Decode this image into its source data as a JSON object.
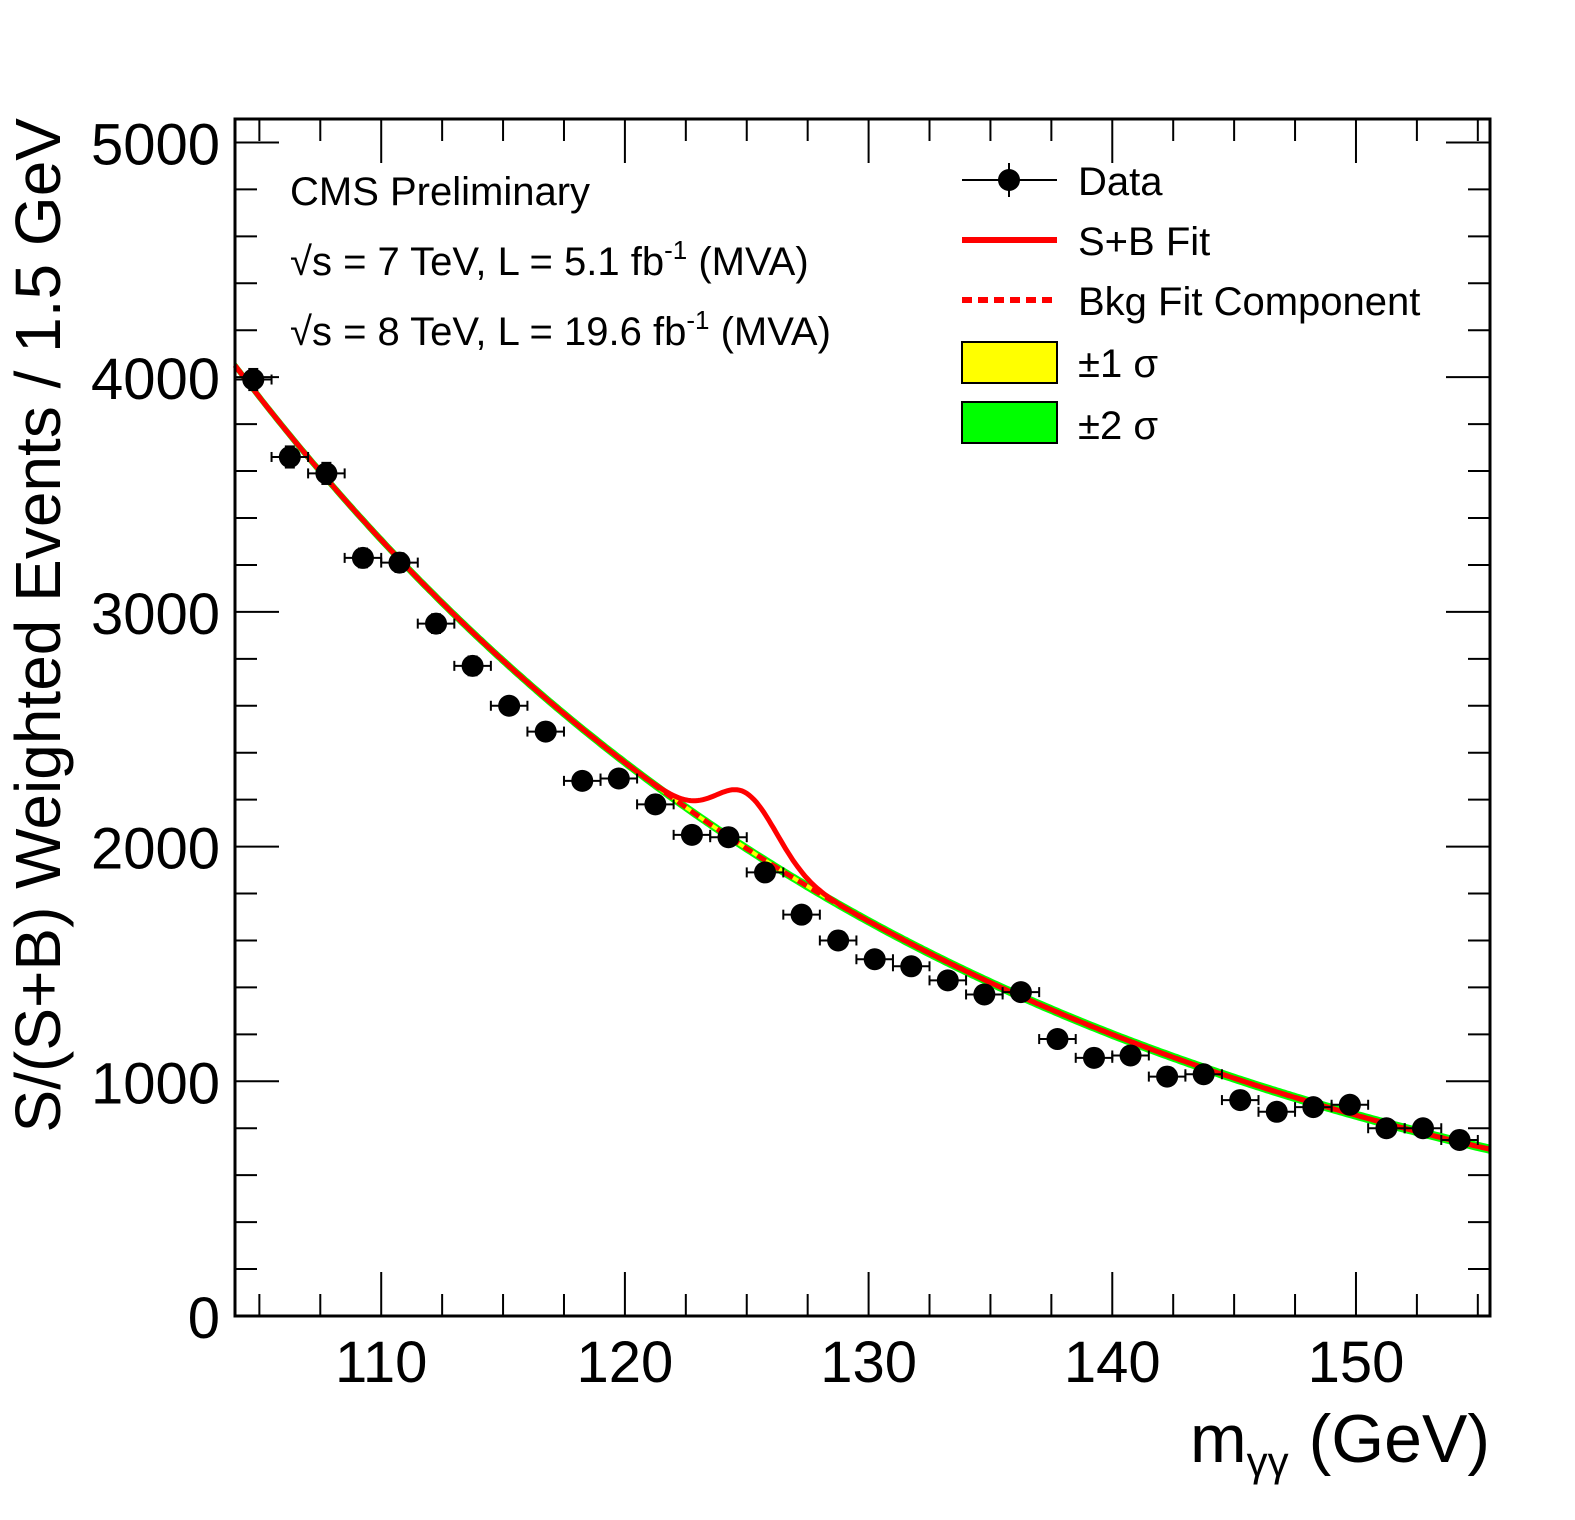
{
  "chart_data": {
    "type": "scatter",
    "title": "",
    "xlabel_main": "m",
    "xlabel_sub": "γγ",
    "xlabel_unit": "(GeV)",
    "ylabel": "S/(S+B) Weighted Events / 1.5 GeV",
    "xlim": [
      104,
      155.5
    ],
    "ylim": [
      0,
      5100
    ],
    "x_ticks": [
      110,
      120,
      130,
      140,
      150
    ],
    "x_tick_labels": [
      "110",
      "120",
      "130",
      "140",
      "150"
    ],
    "y_ticks": [
      0,
      1000,
      2000,
      3000,
      4000,
      5000
    ],
    "y_tick_labels": [
      "0",
      "1000",
      "2000",
      "3000",
      "4000",
      "5000"
    ],
    "bin_half_width": 0.75,
    "annotations": {
      "experiment": "CMS Preliminary",
      "sqrt_symbol": "√s",
      "line1_rest": " = 7 TeV, L = 5.1 fb",
      "line1_sup": "-1",
      "line1_tail": " (MVA)",
      "line2_rest": " = 8 TeV, L = 19.6 fb",
      "line2_sup": "-1",
      "line2_tail": " (MVA)"
    },
    "legend": {
      "placement": "top-right",
      "data": "Data",
      "sb_fit": "S+B Fit",
      "bkg_fit": "Bkg Fit Component",
      "band1": "±1 σ",
      "band2": "±2 σ"
    },
    "colors": {
      "data": "#000000",
      "sb_fit": "#ff0000",
      "bkg_fit": "#ff0000",
      "band1": "#ffff00",
      "band2": "#00ff00"
    },
    "bkg_model": {
      "description": "exponential background",
      "a": 4050,
      "b": 0.0338,
      "x0": 104.0
    },
    "signal_model": {
      "mass": 125.0,
      "amplitude": 235,
      "sigma": 1.25
    },
    "band_widths": {
      "one_sigma": 10,
      "two_sigma": 20
    },
    "series": [
      {
        "name": "Data",
        "x": [
          104.75,
          106.25,
          107.75,
          109.25,
          110.75,
          112.25,
          113.75,
          115.25,
          116.75,
          118.25,
          119.75,
          121.25,
          122.75,
          124.25,
          125.75,
          127.25,
          128.75,
          130.25,
          131.75,
          133.25,
          134.75,
          136.25,
          137.75,
          139.25,
          140.75,
          142.25,
          143.75,
          145.25,
          146.75,
          148.25,
          149.75,
          151.25,
          152.75,
          154.25
        ],
        "y": [
          3990,
          3660,
          3590,
          3230,
          3210,
          2950,
          2770,
          2600,
          2490,
          2280,
          2290,
          2180,
          2050,
          2040,
          1890,
          1710,
          1600,
          1520,
          1490,
          1430,
          1370,
          1380,
          1180,
          1100,
          1110,
          1020,
          1030,
          920,
          870,
          890,
          900,
          800,
          800,
          750
        ],
        "yerr": [
          45,
          45,
          45,
          40,
          40,
          40,
          40,
          35,
          35,
          35,
          35,
          35,
          30,
          30,
          30,
          30,
          30,
          28,
          28,
          28,
          28,
          28,
          25,
          25,
          25,
          25,
          25,
          22,
          22,
          22,
          22,
          22,
          22,
          22
        ]
      }
    ]
  }
}
